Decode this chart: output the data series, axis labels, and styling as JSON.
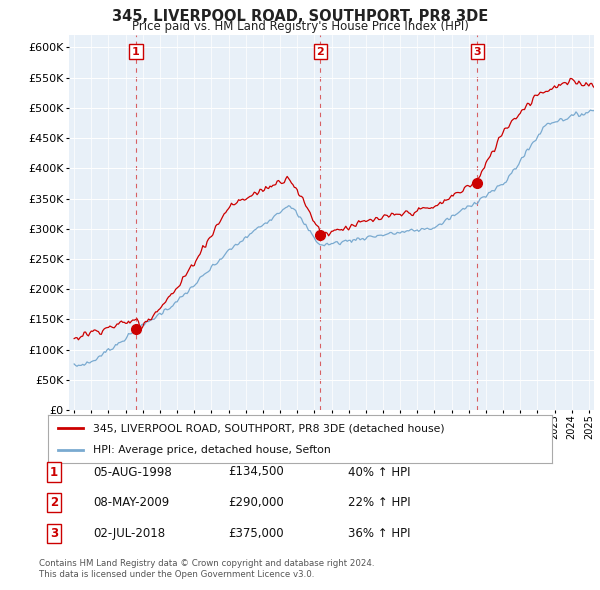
{
  "title": "345, LIVERPOOL ROAD, SOUTHPORT, PR8 3DE",
  "subtitle": "Price paid vs. HM Land Registry's House Price Index (HPI)",
  "red_label": "345, LIVERPOOL ROAD, SOUTHPORT, PR8 3DE (detached house)",
  "blue_label": "HPI: Average price, detached house, Sefton",
  "footnote1": "Contains HM Land Registry data © Crown copyright and database right 2024.",
  "footnote2": "This data is licensed under the Open Government Licence v3.0.",
  "transactions": [
    {
      "num": 1,
      "date": "05-AUG-1998",
      "price": "£134,500",
      "change": "40% ↑ HPI",
      "year": 1998.6,
      "price_val": 134500
    },
    {
      "num": 2,
      "date": "08-MAY-2009",
      "price": "£290,000",
      "change": "22% ↑ HPI",
      "year": 2009.35,
      "price_val": 290000
    },
    {
      "num": 3,
      "date": "02-JUL-2018",
      "price": "£375,000",
      "change": "36% ↑ HPI",
      "year": 2018.5,
      "price_val": 375000
    }
  ],
  "ylim": [
    0,
    620000
  ],
  "yticks": [
    0,
    50000,
    100000,
    150000,
    200000,
    250000,
    300000,
    350000,
    400000,
    450000,
    500000,
    550000,
    600000
  ],
  "xlim": [
    1994.7,
    2025.3
  ],
  "red_color": "#cc0000",
  "blue_color": "#7aaad0",
  "bg_color": "#ffffff",
  "plot_bg": "#e8f0f8"
}
